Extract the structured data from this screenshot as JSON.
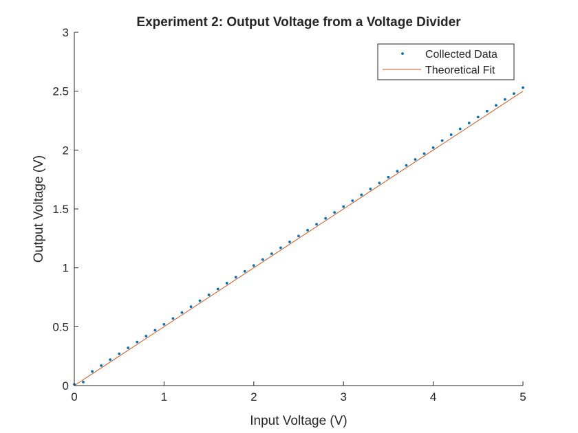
{
  "chart_data": {
    "type": "scatter",
    "title": "Experiment 2: Output Voltage from a Voltage Divider",
    "xlabel": "Input Voltage (V)",
    "ylabel": "Output Voltage (V)",
    "xlim": [
      0,
      5
    ],
    "ylim": [
      0,
      3
    ],
    "x_ticks": [
      0,
      1,
      2,
      3,
      4,
      5
    ],
    "y_ticks": [
      0,
      0.5,
      1,
      1.5,
      2,
      2.5,
      3
    ],
    "x_tick_labels": [
      "0",
      "1",
      "2",
      "3",
      "4",
      "5"
    ],
    "y_tick_labels": [
      "0",
      "0.5",
      "1",
      "1.5",
      "2",
      "2.5",
      "3"
    ],
    "grid": false,
    "legend_position": "top-right",
    "series": [
      {
        "name": "Collected Data",
        "kind": "scatter",
        "color": "#0072BD",
        "x": [
          0,
          0.1,
          0.2,
          0.3,
          0.4,
          0.5,
          0.6,
          0.7,
          0.8,
          0.9,
          1.0,
          1.1,
          1.2,
          1.3,
          1.4,
          1.5,
          1.6,
          1.7,
          1.8,
          1.9,
          2.0,
          2.1,
          2.2,
          2.3,
          2.4,
          2.5,
          2.6,
          2.7,
          2.8,
          2.9,
          3.0,
          3.1,
          3.2,
          3.3,
          3.4,
          3.5,
          3.6,
          3.7,
          3.8,
          3.9,
          4.0,
          4.1,
          4.2,
          4.3,
          4.4,
          4.5,
          4.6,
          4.7,
          4.8,
          4.9,
          5.0
        ],
        "y": [
          0.01,
          0.03,
          0.12,
          0.17,
          0.22,
          0.27,
          0.32,
          0.37,
          0.42,
          0.47,
          0.52,
          0.57,
          0.62,
          0.67,
          0.72,
          0.77,
          0.82,
          0.87,
          0.92,
          0.97,
          1.02,
          1.07,
          1.12,
          1.17,
          1.22,
          1.27,
          1.32,
          1.37,
          1.42,
          1.47,
          1.52,
          1.57,
          1.62,
          1.67,
          1.72,
          1.77,
          1.82,
          1.87,
          1.92,
          1.97,
          2.02,
          2.08,
          2.13,
          2.18,
          2.23,
          2.28,
          2.33,
          2.38,
          2.43,
          2.48,
          2.53
        ]
      },
      {
        "name": "Theoretical Fit",
        "kind": "line",
        "color": "#D95319",
        "x": [
          0,
          5
        ],
        "y": [
          0,
          2.5
        ]
      }
    ]
  }
}
